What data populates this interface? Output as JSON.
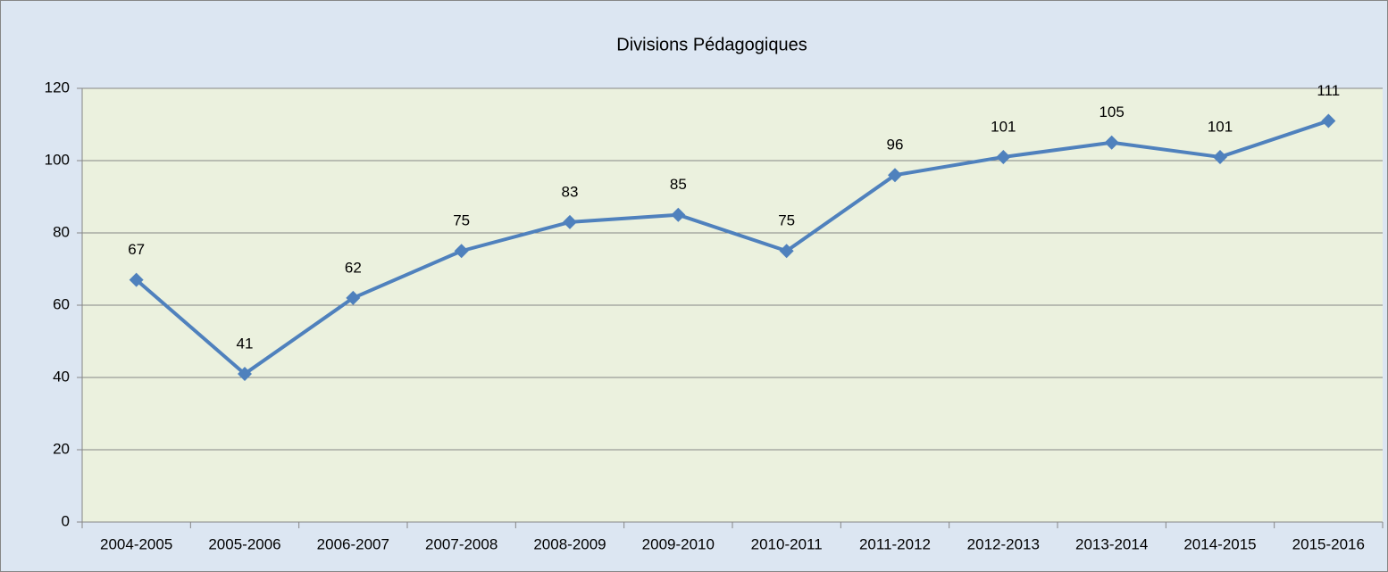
{
  "chart_data": {
    "type": "line",
    "title": "Divisions Pédagogiques",
    "categories": [
      "2004-2005",
      "2005-2006",
      "2006-2007",
      "2007-2008",
      "2008-2009",
      "2009-2010",
      "2010-2011",
      "2011-2012",
      "2012-2013",
      "2013-2014",
      "2014-2015",
      "2015-2016"
    ],
    "series": [
      {
        "name": "Divisions Pédagogiques",
        "color": "#4f81bd",
        "values": [
          67,
          41,
          62,
          75,
          83,
          85,
          75,
          96,
          101,
          105,
          101,
          111
        ]
      }
    ],
    "ylim": [
      0,
      120
    ],
    "yticks": [
      0,
      20,
      40,
      60,
      80,
      100,
      120
    ],
    "grid": true
  }
}
